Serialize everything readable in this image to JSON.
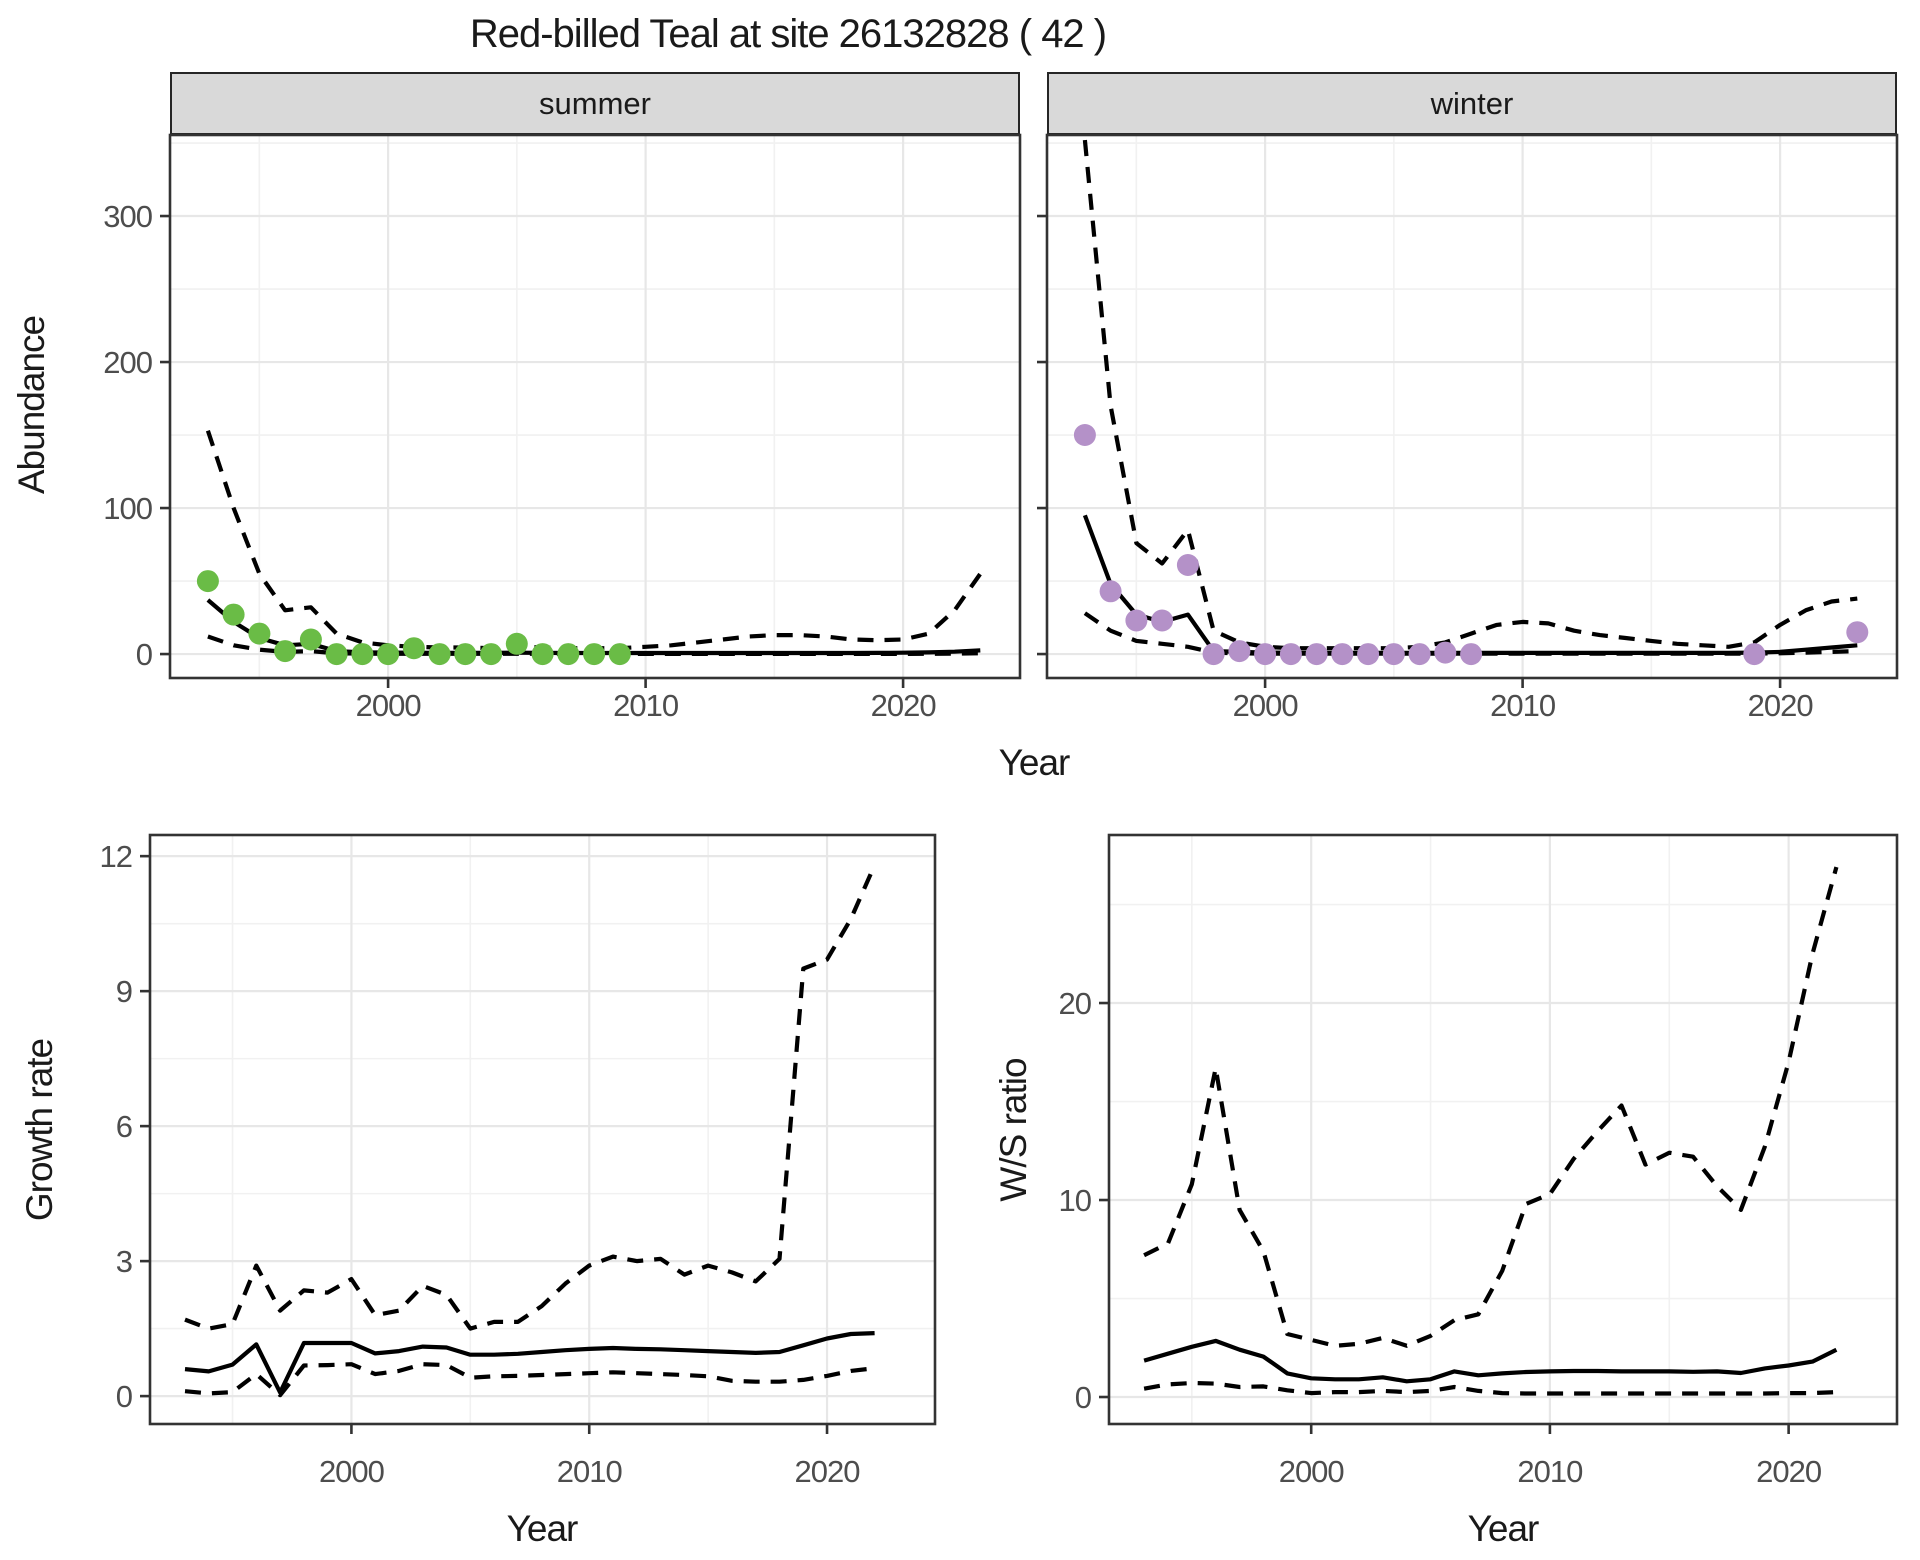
{
  "title": "Red-billed Teal at site 26132828 ( 42 )",
  "top_row": {
    "y_axis_title": "Abundance",
    "x_axis_title": "Year",
    "facets": [
      {
        "label": "summer"
      },
      {
        "label": "winter"
      }
    ]
  },
  "bottom_row": {
    "left": {
      "y_axis_title": "Growth rate",
      "x_axis_title": "Year"
    },
    "right": {
      "y_axis_title": "W/S ratio",
      "x_axis_title": "Year"
    }
  },
  "colors": {
    "summer_points": "#6ABC46",
    "winter_points": "#B491C8",
    "line": "#000000",
    "strip_bg": "#D9D9D9",
    "panel_border": "#333333",
    "grid_major": "#E7E7E7",
    "grid_minor": "#F1F1F1",
    "tick_label": "#4D4D4D",
    "tick_mark": "#333333"
  },
  "chart_data": [
    {
      "id": "summer",
      "type": "line",
      "facet_label": "summer",
      "xlabel": "Year",
      "ylabel": "Abundance",
      "xlim": [
        1991.53,
        2024.54
      ],
      "ylim": [
        -16.4,
        355.5
      ],
      "xticks": [
        2000,
        2010,
        2020
      ],
      "xminor": [
        1995,
        2005,
        2015
      ],
      "yticks": [
        0,
        100,
        200,
        300
      ],
      "yminor": [
        50,
        150,
        250,
        350
      ],
      "show_y_labels": true,
      "x": [
        1993,
        1994,
        1995,
        1996,
        1997,
        1998,
        1999,
        2000,
        2001,
        2002,
        2003,
        2004,
        2005,
        2006,
        2007,
        2008,
        2009,
        2010,
        2011,
        2012,
        2013,
        2014,
        2015,
        2016,
        2017,
        2018,
        2019,
        2020,
        2021,
        2022,
        2023
      ],
      "series": [
        {
          "name": "median",
          "style": "solid",
          "values": [
            37,
            22,
            11,
            6,
            7,
            2,
            1.2,
            1,
            0.9,
            0.8,
            0.8,
            0.8,
            0.9,
            0.8,
            0.7,
            0.7,
            0.7,
            0.7,
            0.7,
            0.7,
            0.7,
            0.7,
            0.7,
            0.7,
            0.7,
            0.7,
            0.8,
            0.9,
            1.1,
            1.6,
            2.5
          ]
        },
        {
          "name": "upper-ci",
          "style": "dashed",
          "values": [
            153,
            100,
            55,
            30,
            32,
            14,
            8,
            6,
            5,
            4.5,
            4.5,
            4,
            5,
            4.5,
            4,
            4,
            4,
            5,
            6,
            8,
            10,
            12,
            13,
            13,
            12,
            10,
            9.5,
            10,
            14,
            30,
            55
          ]
        },
        {
          "name": "lower-ci",
          "style": "dashed",
          "values": [
            12,
            6,
            3,
            1.5,
            2,
            0.5,
            0.3,
            0.2,
            0.2,
            0.2,
            0.2,
            0.2,
            0.2,
            0.2,
            0.2,
            0.1,
            0.1,
            0.1,
            0.1,
            0.1,
            0.1,
            0.1,
            0.1,
            0.1,
            0.1,
            0.1,
            0.1,
            0.1,
            0.2,
            0.3,
            0.5
          ]
        }
      ],
      "points": {
        "name": "observed-counts-summer",
        "color": "#6ABC46",
        "x": [
          1993,
          1994,
          1995,
          1996,
          1997,
          1998,
          1999,
          2000,
          2001,
          2002,
          2003,
          2004,
          2005,
          2006,
          2007,
          2008,
          2009
        ],
        "y": [
          50,
          27,
          14,
          2,
          10,
          0,
          0,
          0,
          4,
          0,
          0,
          0,
          7,
          0,
          0,
          0,
          0
        ]
      }
    },
    {
      "id": "winter",
      "type": "line",
      "facet_label": "winter",
      "xlabel": "Year",
      "ylabel": "Abundance",
      "xlim": [
        1991.53,
        2024.54
      ],
      "ylim": [
        -16.4,
        355.5
      ],
      "xticks": [
        2000,
        2010,
        2020
      ],
      "xminor": [
        1995,
        2005,
        2015
      ],
      "yticks": [
        0,
        100,
        200,
        300
      ],
      "yminor": [
        50,
        150,
        250,
        350
      ],
      "show_y_labels": false,
      "x": [
        1993,
        1994,
        1995,
        1996,
        1997,
        1998,
        1999,
        2000,
        2001,
        2002,
        2003,
        2004,
        2005,
        2006,
        2007,
        2008,
        2009,
        2010,
        2011,
        2012,
        2013,
        2014,
        2015,
        2016,
        2017,
        2018,
        2019,
        2020,
        2021,
        2022,
        2023
      ],
      "series": [
        {
          "name": "median",
          "style": "solid",
          "values": [
            95,
            48,
            27,
            22,
            27,
            2,
            1.5,
            1,
            0.9,
            0.8,
            0.8,
            0.8,
            0.8,
            0.8,
            0.8,
            0.8,
            0.8,
            0.8,
            0.8,
            0.8,
            0.8,
            0.8,
            0.8,
            0.8,
            0.8,
            0.8,
            1,
            1.5,
            3,
            4.5,
            6
          ]
        },
        {
          "name": "upper-ci",
          "style": "dashed",
          "values": [
            352,
            170,
            76,
            62,
            85,
            16,
            8,
            5,
            4,
            4,
            4,
            4,
            4,
            5,
            8,
            14,
            20,
            22,
            21,
            16,
            13,
            11,
            9,
            7,
            6,
            5,
            8,
            20,
            30,
            36,
            38
          ]
        },
        {
          "name": "lower-ci",
          "style": "dashed",
          "values": [
            28,
            16,
            9,
            7,
            5,
            1,
            0.5,
            0.3,
            0.3,
            0.3,
            0.3,
            0.3,
            0.3,
            0.3,
            0.3,
            0.3,
            0.3,
            0.3,
            0.3,
            0.3,
            0.3,
            0.3,
            0.3,
            0.3,
            0.3,
            0.3,
            0.3,
            0.5,
            1,
            1.5,
            2
          ]
        }
      ],
      "points": {
        "name": "observed-counts-winter",
        "color": "#B491C8",
        "x": [
          1993,
          1994,
          1995,
          1996,
          1997,
          1998,
          1999,
          2000,
          2001,
          2002,
          2003,
          2004,
          2005,
          2006,
          2007,
          2008,
          2019,
          2023
        ],
        "y": [
          150,
          43,
          23,
          23,
          61,
          0,
          2,
          0,
          0,
          0,
          0,
          0,
          0,
          0,
          1,
          0,
          0,
          15
        ]
      }
    },
    {
      "id": "growth",
      "type": "line",
      "facet_label": "",
      "xlabel": "Year",
      "ylabel": "Growth rate",
      "xlim": [
        1991.53,
        2024.54
      ],
      "ylim": [
        -0.62,
        12.47
      ],
      "xticks": [
        2000,
        2010,
        2020
      ],
      "xminor": [
        1995,
        2005,
        2015
      ],
      "yticks": [
        0,
        3,
        6,
        9,
        12
      ],
      "yminor": [
        1.5,
        4.5,
        7.5,
        10.5
      ],
      "show_y_labels": true,
      "x": [
        1993,
        1994,
        1995,
        1996,
        1997,
        1998,
        1999,
        2000,
        2001,
        2002,
        2003,
        2004,
        2005,
        2006,
        2007,
        2008,
        2009,
        2010,
        2011,
        2012,
        2013,
        2014,
        2015,
        2016,
        2017,
        2018,
        2019,
        2020,
        2021,
        2022
      ],
      "series": [
        {
          "name": "median",
          "style": "solid",
          "values": [
            0.6,
            0.55,
            0.7,
            1.15,
            0.08,
            1.18,
            1.18,
            1.18,
            0.95,
            1.0,
            1.1,
            1.08,
            0.92,
            0.92,
            0.94,
            0.98,
            1.02,
            1.05,
            1.07,
            1.05,
            1.04,
            1.02,
            1.0,
            0.98,
            0.96,
            0.98,
            1.13,
            1.28,
            1.38,
            1.4
          ]
        },
        {
          "name": "upper-ci",
          "style": "dashed",
          "values": [
            1.7,
            1.5,
            1.6,
            2.9,
            1.9,
            2.35,
            2.3,
            2.6,
            1.8,
            1.9,
            2.45,
            2.25,
            1.5,
            1.65,
            1.65,
            2.0,
            2.5,
            2.9,
            3.1,
            3.0,
            3.05,
            2.7,
            2.9,
            2.75,
            2.55,
            3.05,
            9.5,
            9.7,
            10.6,
            11.8
          ]
        },
        {
          "name": "lower-ci",
          "style": "dashed",
          "values": [
            0.11,
            0.06,
            0.09,
            0.49,
            0.02,
            0.68,
            0.69,
            0.71,
            0.49,
            0.56,
            0.71,
            0.69,
            0.41,
            0.44,
            0.45,
            0.47,
            0.49,
            0.51,
            0.53,
            0.51,
            0.49,
            0.47,
            0.44,
            0.34,
            0.32,
            0.32,
            0.36,
            0.45,
            0.56,
            0.62
          ]
        }
      ],
      "points": null
    },
    {
      "id": "ws",
      "type": "line",
      "facet_label": "",
      "xlabel": "Year",
      "ylabel": "W/S ratio",
      "xlim": [
        1991.53,
        2024.54
      ],
      "ylim": [
        -1.37,
        28.53
      ],
      "xticks": [
        2000,
        2010,
        2020
      ],
      "xminor": [
        1995,
        2005,
        2015
      ],
      "yticks": [
        0,
        10,
        20
      ],
      "yminor": [
        5,
        15,
        25
      ],
      "show_y_labels": true,
      "x": [
        1993,
        1994,
        1995,
        1996,
        1997,
        1998,
        1999,
        2000,
        2001,
        2002,
        2003,
        2004,
        2005,
        2006,
        2007,
        2008,
        2009,
        2010,
        2011,
        2012,
        2013,
        2014,
        2015,
        2016,
        2017,
        2018,
        2019,
        2020,
        2021,
        2022
      ],
      "series": [
        {
          "name": "median",
          "style": "solid",
          "values": [
            1.85,
            2.2,
            2.55,
            2.85,
            2.4,
            2.05,
            1.2,
            0.95,
            0.9,
            0.9,
            1.0,
            0.8,
            0.9,
            1.3,
            1.1,
            1.2,
            1.27,
            1.3,
            1.32,
            1.32,
            1.3,
            1.3,
            1.3,
            1.28,
            1.3,
            1.22,
            1.45,
            1.6,
            1.8,
            2.4
          ]
        },
        {
          "name": "upper-ci",
          "style": "dashed",
          "values": [
            7.2,
            7.8,
            10.8,
            16.7,
            9.5,
            7.4,
            3.2,
            2.9,
            2.6,
            2.7,
            3.0,
            2.6,
            3.1,
            3.9,
            4.2,
            6.4,
            9.8,
            10.3,
            12.1,
            13.5,
            14.8,
            11.8,
            12.4,
            12.2,
            10.7,
            9.5,
            12.7,
            17.0,
            22.5,
            26.9
          ]
        },
        {
          "name": "lower-ci",
          "style": "dashed",
          "values": [
            0.42,
            0.64,
            0.71,
            0.68,
            0.51,
            0.54,
            0.34,
            0.2,
            0.25,
            0.25,
            0.31,
            0.25,
            0.31,
            0.51,
            0.31,
            0.2,
            0.18,
            0.18,
            0.18,
            0.18,
            0.18,
            0.18,
            0.18,
            0.18,
            0.18,
            0.18,
            0.18,
            0.2,
            0.2,
            0.25
          ]
        }
      ],
      "points": null
    }
  ]
}
